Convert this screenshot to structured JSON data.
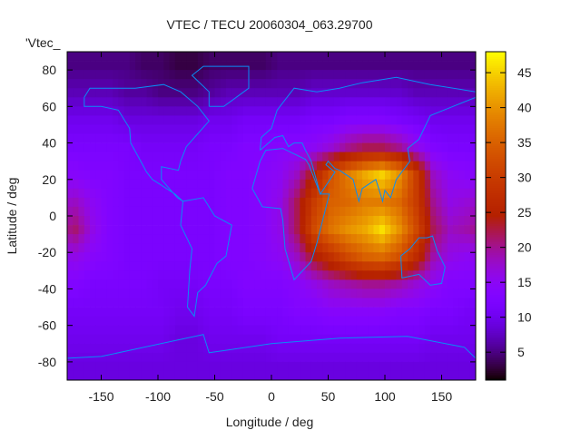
{
  "chart_data": {
    "type": "heatmap",
    "title": "VTEC / TECU 20060304_063.29700",
    "xlabel": "Longitude / deg",
    "ylabel": "Latitude / deg",
    "legend_label": "'Vtec_",
    "xlim": [
      -180,
      180
    ],
    "ylim": [
      -90,
      90
    ],
    "xticks": [
      "-150",
      "-100",
      "-50",
      "0",
      "50",
      "100",
      "150"
    ],
    "xtick_values": [
      -150,
      -100,
      -50,
      0,
      50,
      100,
      150
    ],
    "yticks": [
      "-80",
      "-60",
      "-40",
      "-20",
      "0",
      "20",
      "40",
      "60",
      "80"
    ],
    "ytick_values": [
      -80,
      -60,
      -40,
      -20,
      0,
      20,
      40,
      60,
      80
    ],
    "colorbar": {
      "range": [
        1,
        48
      ],
      "ticks": [
        "5",
        "10",
        "15",
        "20",
        "25",
        "30",
        "35",
        "40",
        "45"
      ],
      "tick_values": [
        5,
        10,
        15,
        20,
        25,
        30,
        35,
        40,
        45
      ]
    },
    "coastline_color": "#0a8cf5",
    "grid_lon_centers": [
      -172.5,
      -157.5,
      -142.5,
      -127.5,
      -112.5,
      -97.5,
      -82.5,
      -67.5,
      -52.5,
      -37.5,
      -22.5,
      -7.5,
      7.5,
      22.5,
      37.5,
      52.5,
      67.5,
      82.5,
      97.5,
      112.5,
      127.5,
      142.5,
      157.5,
      172.5
    ],
    "grid_lat_centers": [
      82.5,
      67.5,
      52.5,
      37.5,
      22.5,
      7.5,
      -7.5,
      -22.5,
      -37.5,
      -52.5,
      -67.5,
      -82.5
    ],
    "values": [
      [
        5,
        5,
        5,
        5,
        4,
        4,
        3,
        3,
        4,
        4,
        4,
        4,
        5,
        5,
        5,
        5,
        5,
        5,
        5,
        5,
        5,
        5,
        5,
        5
      ],
      [
        7,
        7,
        7,
        6,
        6,
        5,
        5,
        5,
        6,
        7,
        7,
        7,
        7,
        7,
        8,
        8,
        8,
        8,
        8,
        8,
        7,
        7,
        7,
        7
      ],
      [
        10,
        10,
        10,
        9,
        9,
        9,
        9,
        9,
        10,
        10,
        11,
        11,
        11,
        11,
        12,
        12,
        13,
        13,
        13,
        12,
        11,
        10,
        10,
        10
      ],
      [
        12,
        12,
        12,
        12,
        11,
        11,
        11,
        11,
        12,
        12,
        13,
        13,
        14,
        14,
        15,
        17,
        20,
        22,
        22,
        20,
        16,
        13,
        12,
        12
      ],
      [
        14,
        13,
        13,
        12,
        12,
        12,
        12,
        12,
        12,
        13,
        13,
        14,
        15,
        18,
        25,
        33,
        38,
        42,
        45,
        40,
        30,
        18,
        15,
        14
      ],
      [
        18,
        15,
        13,
        12,
        12,
        12,
        12,
        12,
        12,
        13,
        13,
        14,
        16,
        22,
        30,
        35,
        36,
        38,
        38,
        36,
        30,
        20,
        16,
        17
      ],
      [
        21,
        16,
        13,
        12,
        12,
        12,
        12,
        12,
        12,
        13,
        13,
        14,
        16,
        22,
        32,
        37,
        40,
        42,
        46,
        40,
        32,
        22,
        18,
        19
      ],
      [
        16,
        14,
        13,
        12,
        12,
        12,
        12,
        12,
        12,
        13,
        13,
        14,
        15,
        18,
        24,
        28,
        32,
        35,
        36,
        33,
        27,
        19,
        16,
        15
      ],
      [
        13,
        12,
        12,
        12,
        12,
        11,
        11,
        11,
        12,
        12,
        13,
        13,
        13,
        14,
        16,
        18,
        19,
        20,
        20,
        19,
        17,
        15,
        13,
        13
      ],
      [
        11,
        11,
        11,
        11,
        11,
        11,
        10,
        10,
        11,
        11,
        12,
        12,
        12,
        13,
        13,
        14,
        14,
        14,
        14,
        13,
        13,
        12,
        12,
        11
      ],
      [
        10,
        10,
        10,
        10,
        10,
        10,
        9,
        9,
        10,
        10,
        10,
        10,
        11,
        11,
        11,
        11,
        11,
        11,
        11,
        11,
        11,
        10,
        10,
        10
      ],
      [
        9,
        9,
        9,
        9,
        9,
        9,
        9,
        9,
        9,
        9,
        9,
        9,
        9,
        9,
        9,
        9,
        9,
        9,
        9,
        9,
        9,
        9,
        9,
        9
      ]
    ]
  }
}
